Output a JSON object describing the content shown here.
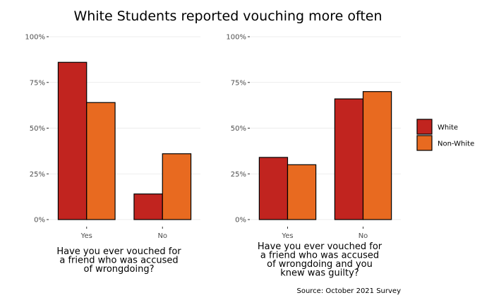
{
  "title": "White Students reported vouching more often",
  "caption": "Source: October 2021 Survey",
  "legend": {
    "position": "right"
  },
  "colors": {
    "White": "#c1241f",
    "Non-White": "#e86a20"
  },
  "chart_data": [
    {
      "type": "bar",
      "categories": [
        "Yes",
        "No"
      ],
      "series": [
        {
          "name": "White",
          "values": [
            0.86,
            0.14
          ]
        },
        {
          "name": "Non-White",
          "values": [
            0.64,
            0.36
          ]
        }
      ],
      "xlabel": [
        "Have you ever vouched for",
        "a friend who was accused",
        "of wrongdoing?"
      ],
      "ylabel": "",
      "ylim": [
        0,
        1
      ],
      "yticks": [
        0,
        0.25,
        0.5,
        0.75,
        1.0
      ],
      "ytick_labels": [
        "0%",
        "25%",
        "50%",
        "75%",
        "100%"
      ],
      "grid": true
    },
    {
      "type": "bar",
      "categories": [
        "Yes",
        "No"
      ],
      "series": [
        {
          "name": "White",
          "values": [
            0.34,
            0.66
          ]
        },
        {
          "name": "Non-White",
          "values": [
            0.3,
            0.7
          ]
        }
      ],
      "xlabel": [
        "Have you ever vouched for",
        "a friend who was accused",
        "of wrongdoing and you",
        "knew was guilty?"
      ],
      "ylabel": "",
      "ylim": [
        0,
        1
      ],
      "yticks": [
        0,
        0.25,
        0.5,
        0.75,
        1.0
      ],
      "ytick_labels": [
        "0%",
        "25%",
        "50%",
        "75%",
        "100%"
      ],
      "grid": true
    }
  ]
}
